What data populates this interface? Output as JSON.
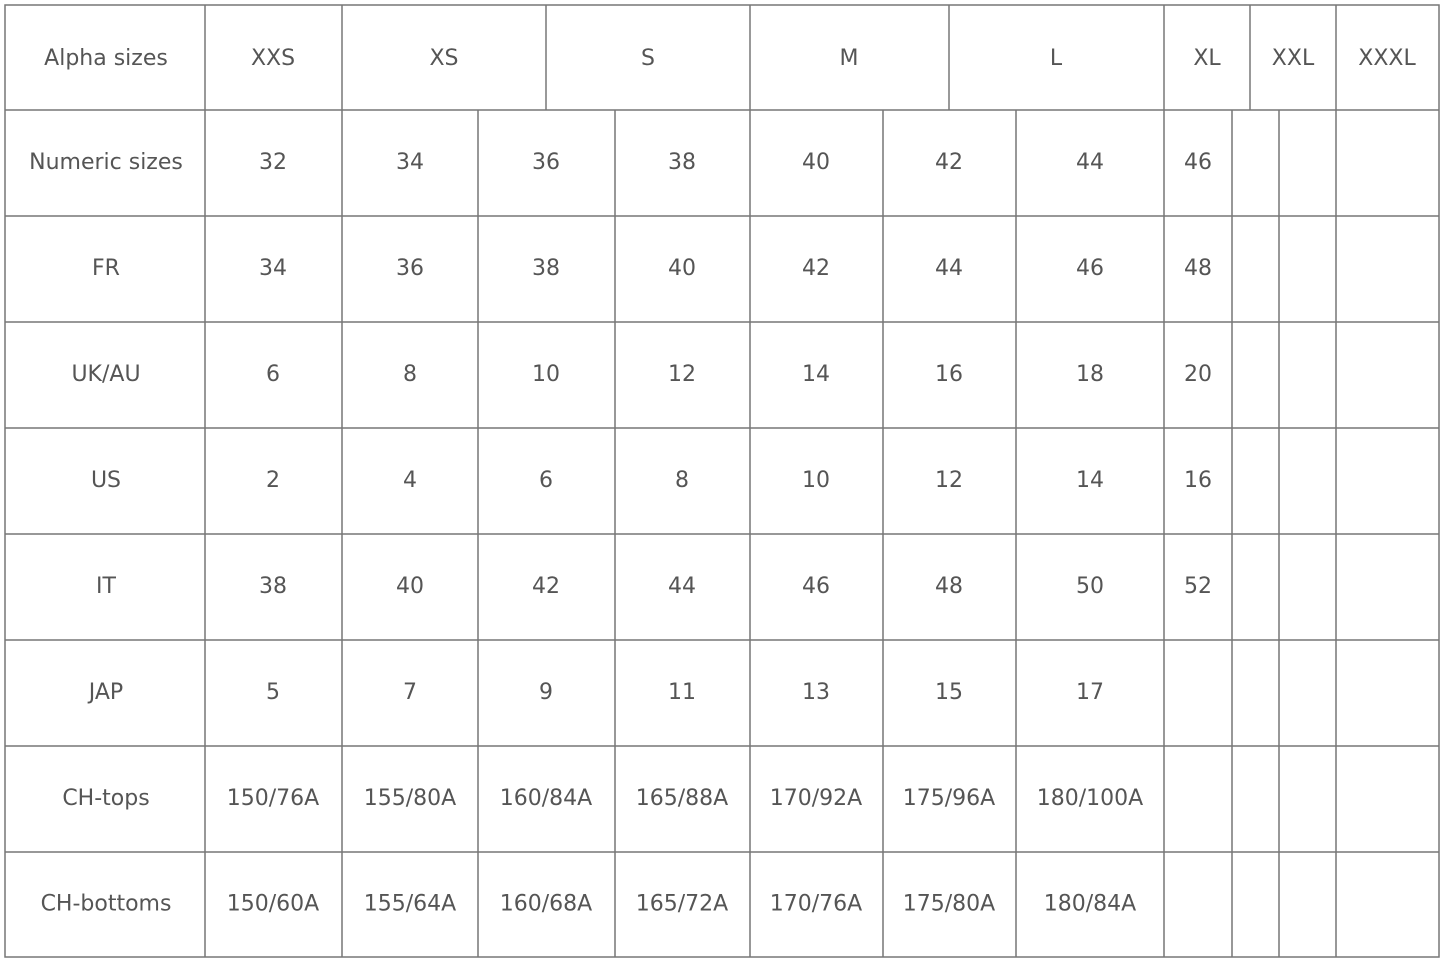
{
  "header": [
    "Alpha sizes",
    "XXS",
    "XS",
    "S",
    "M",
    "L",
    "XL",
    "XXL",
    "XXXL"
  ],
  "rows": [
    {
      "label": "Numeric sizes",
      "values": [
        "32",
        "34",
        "36",
        "38",
        "40",
        "42",
        "44",
        "46"
      ]
    },
    {
      "label": "FR",
      "values": [
        "34",
        "36",
        "38",
        "40",
        "42",
        "44",
        "46",
        "48"
      ]
    },
    {
      "label": "UK/AU",
      "values": [
        "6",
        "8",
        "10",
        "12",
        "14",
        "16",
        "18",
        "20"
      ]
    },
    {
      "label": "US",
      "values": [
        "2",
        "4",
        "6",
        "8",
        "10",
        "12",
        "14",
        "16"
      ]
    },
    {
      "label": "IT",
      "values": [
        "38",
        "40",
        "42",
        "44",
        "46",
        "48",
        "50",
        "52"
      ]
    },
    {
      "label": "JAP",
      "values": [
        "5",
        "7",
        "9",
        "11",
        "13",
        "15",
        "17"
      ]
    },
    {
      "label": "CH-tops",
      "values": [
        "150/76A",
        "155/80A",
        "160/84A",
        "165/88A",
        "170/92A",
        "175/96A",
        "180/100A"
      ]
    },
    {
      "label": "CH-bottoms",
      "values": [
        "150/60A",
        "155/64A",
        "160/68A",
        "165/72A",
        "170/76A",
        "175/80A",
        "180/84A"
      ]
    }
  ]
}
